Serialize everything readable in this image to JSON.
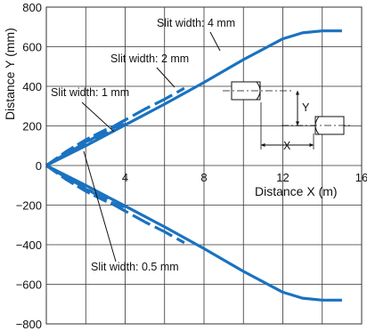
{
  "chart_data": {
    "type": "line",
    "xlabel": "Distance X (m)",
    "ylabel": "Distance Y (mm)",
    "xlim": [
      0,
      16
    ],
    "ylim": [
      -800,
      800
    ],
    "x_tick_values": [
      4,
      8,
      12,
      16
    ],
    "x_tick_labels": [
      "4",
      "8",
      "12",
      "16"
    ],
    "y_tick_values": [
      -800,
      -600,
      -400,
      -200,
      0,
      200,
      400,
      600,
      800
    ],
    "y_tick_labels": [
      "−800",
      "−600",
      "−400",
      "−200",
      "0",
      "200",
      "400",
      "600",
      "800"
    ],
    "grid": true,
    "line_color": "#1a72c0",
    "series": [
      {
        "name": "Slit width: 4 mm",
        "x": [
          0,
          2,
          4,
          6,
          8,
          10,
          12,
          13,
          14,
          15
        ],
        "y": [
          0,
          100,
          205,
          310,
          420,
          535,
          640,
          670,
          680,
          680
        ]
      },
      {
        "name": "Slit width: 2 mm",
        "x": [
          0,
          1,
          2,
          3,
          4,
          5,
          6,
          7
        ],
        "y": [
          0,
          60,
          115,
          175,
          230,
          285,
          335,
          390
        ]
      },
      {
        "name": "Slit width: 1 mm",
        "x": [
          0,
          1,
          2,
          3,
          3.5
        ],
        "y": [
          0,
          65,
          120,
          160,
          180
        ]
      },
      {
        "name": "Slit width: 0.5 mm",
        "x": [
          0,
          1,
          2,
          3,
          4
        ],
        "y": [
          0,
          70,
          130,
          180,
          210
        ]
      }
    ],
    "annotations": [
      {
        "text": "Slit width: 4 mm",
        "x": 8.3,
        "y": 700
      },
      {
        "text": "Slit width: 2 mm",
        "x": 3.3,
        "y": 520
      },
      {
        "text": "Slit width: 1 mm",
        "x": 0.2,
        "y": 360
      },
      {
        "text": "Slit width: 0.5 mm",
        "x": 2.3,
        "y": -520
      }
    ],
    "inset_labels": {
      "y": "Y",
      "x": "X"
    }
  }
}
